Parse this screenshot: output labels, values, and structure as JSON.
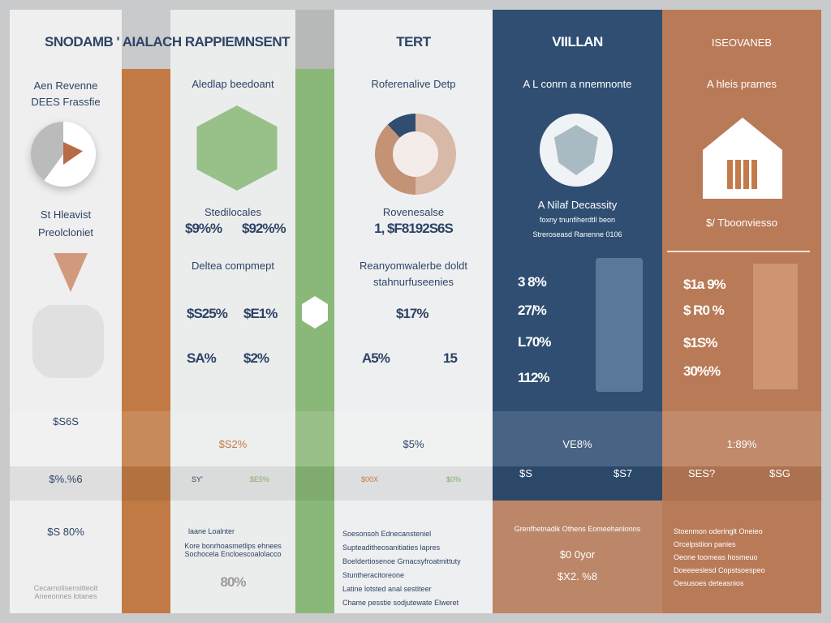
{
  "title": "SNODAMB ' AIALACH RAPPIEMNSENT",
  "columns": [
    {
      "header": "",
      "sub": "Aen Revenne\nDEES Frassfie",
      "label": "St Hleavist\nPreolcloniet",
      "values": [],
      "bottom": [
        "$S6S",
        "$%.%6",
        "$S 80%"
      ],
      "note": "Cecarnolisensitteolt\nAneeonnes lotanes"
    },
    {
      "header": "",
      "sub": "Aledlap beedoant",
      "label": "Stedilocales",
      "values": [
        "$9%%",
        "$92%%"
      ],
      "sub2": "Deltea compmept",
      "grid": [
        "$S25%",
        "$E1%",
        "SA%",
        "$2%"
      ],
      "bottom": [
        "$S2%",
        "SY'",
        "$E5%"
      ],
      "note_head": "laane Loalnter",
      "note": "Kore bonrhoasmetlips ehnees\nSochocela Encloescoalolacco",
      "note_val": "80%"
    },
    {
      "header": "TERT",
      "sub": "Roferenalive Detp",
      "label": "Rovenesalse",
      "values": [
        "1, $F8192S6S"
      ],
      "sub2": "Reanyomwalerbe doldt\nstahnurfuseenies",
      "grid": [
        "$17%",
        "A5%",
        "15"
      ],
      "bottom": [
        "$5%",
        "$00X",
        "$0%"
      ],
      "note_lines": [
        "Soesonsoh Ednecansteniel",
        "Supteaditheosanitiaties lapres",
        "Boeldertiosenoe Grnacsyfroatmittuty",
        "Stuntheracitoreone",
        "Latine lotsted anal sestiteer",
        "Chame pesstie sodjutewate Elweret"
      ]
    },
    {
      "header": "VIILLAN",
      "sub": "A L conrn a nnemnonte",
      "label": "A Nilaf Decassity",
      "label2": "foxny tnunfiherdtll beon",
      "label3": "Streroseasd Ranenne 0106",
      "values": [
        "3 8%",
        "27/%",
        "L70%",
        "112%"
      ],
      "bottom": [
        "VE8%",
        "$S",
        "$S7"
      ],
      "note": "Grenfhetnadik Othens Eomeehanlonns",
      "note_vals": [
        "$0 0yor",
        "$X2. %8"
      ]
    },
    {
      "header": "ISEOVANEB",
      "sub": "A hleis prarnes",
      "label": "$/ Tboonviesso",
      "values": [
        "$1a 9%",
        "$ R0 %",
        "$1S%",
        "30%%"
      ],
      "bottom": [
        "1:89%",
        "SES?",
        "$SG"
      ],
      "note_lines": [
        "Stoenmon oderinglt Oneieo",
        "Orcelpstiion panies",
        "Oeone toomeas hosmeuo",
        "Doeeeeslesd Copstsoespeo",
        "Oesusoes deteasnios"
      ]
    }
  ],
  "colors": {
    "orange": "#c27a45",
    "green": "#8ab878",
    "navy": "#2f4e72",
    "terracotta": "#b97a57",
    "light": "#eceded"
  },
  "icons": [
    "pie-chart-icon",
    "green-hexagon-icon",
    "donut-chart-icon",
    "shield-cube-icon",
    "house-icon",
    "heart-icon",
    "envelope-icon",
    "dollar-badge-icon"
  ]
}
